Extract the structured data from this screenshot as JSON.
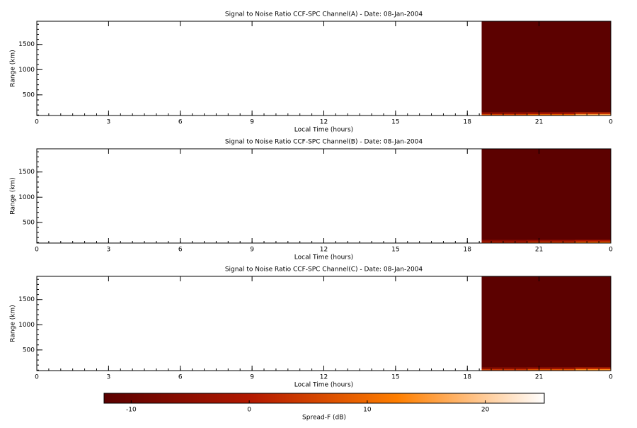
{
  "chart_data": [
    {
      "type": "heatmap",
      "title": "Signal to Noise Ratio CCF-SPC Channel(A) - Date: 08-Jan-2004",
      "xlabel": "Local Time (hours)",
      "ylabel": "Range (km)",
      "xlim": [
        0,
        24
      ],
      "ylim": [
        90,
        1960
      ],
      "xticks": [
        0,
        3,
        6,
        9,
        12,
        15,
        18,
        21,
        {
          "value": 24,
          "label": "0"
        }
      ],
      "yticks": [
        500,
        1000,
        1500
      ],
      "x_edges": [
        18.6,
        20.5,
        22.5,
        24
      ],
      "y_edges": [
        90,
        120,
        150,
        1960
      ],
      "z": [
        [
          6,
          9,
          16
        ],
        [
          -4,
          -2,
          3
        ],
        [
          -12,
          -12,
          -12
        ]
      ]
    },
    {
      "type": "heatmap",
      "title": "Signal to Noise Ratio CCF-SPC Channel(B) - Date: 08-Jan-2004",
      "xlabel": "Local Time (hours)",
      "ylabel": "Range (km)",
      "xlim": [
        0,
        24
      ],
      "ylim": [
        90,
        1960
      ],
      "xticks": [
        0,
        3,
        6,
        9,
        12,
        15,
        18,
        21,
        {
          "value": 24,
          "label": "0"
        }
      ],
      "yticks": [
        500,
        1000,
        1500
      ],
      "x_edges": [
        18.6,
        20.5,
        22.5,
        24
      ],
      "y_edges": [
        90,
        120,
        150,
        1960
      ],
      "z": [
        [
          2,
          5,
          10
        ],
        [
          -6,
          -4,
          -1
        ],
        [
          -12,
          -12,
          -12
        ]
      ]
    },
    {
      "type": "heatmap",
      "title": "Signal to Noise Ratio CCF-SPC Channel(C) - Date: 08-Jan-2004",
      "xlabel": "Local Time (hours)",
      "ylabel": "Range (km)",
      "xlim": [
        0,
        24
      ],
      "ylim": [
        90,
        1960
      ],
      "xticks": [
        0,
        3,
        6,
        9,
        12,
        15,
        18,
        21,
        {
          "value": 24,
          "label": "0"
        }
      ],
      "yticks": [
        500,
        1000,
        1500
      ],
      "x_edges": [
        18.6,
        20.5,
        22.5,
        24
      ],
      "y_edges": [
        90,
        120,
        150,
        1960
      ],
      "z": [
        [
          4,
          8,
          14
        ],
        [
          -5,
          -3,
          2
        ],
        [
          -12,
          -12,
          -12
        ]
      ]
    },
    {
      "type": "colorbar",
      "label": "Spread-F (dB)",
      "lim": [
        -12.3,
        25
      ],
      "ticks": [
        -10,
        0,
        10,
        20
      ],
      "colors": [
        "#5a0000",
        "#b31800",
        "#ff7f00",
        "#ffffff"
      ]
    }
  ]
}
